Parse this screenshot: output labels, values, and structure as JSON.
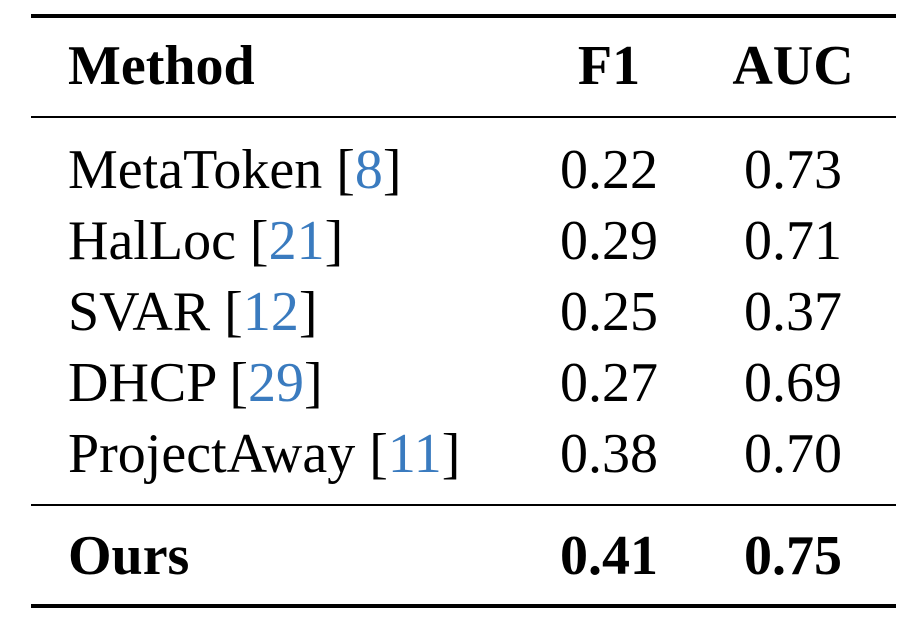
{
  "table": {
    "headers": {
      "method": "Method",
      "f1": "F1",
      "auc": "AUC"
    },
    "rows": [
      {
        "method": "MetaToken",
        "ref": "8",
        "f1": "0.22",
        "auc": "0.73"
      },
      {
        "method": "HalLoc",
        "ref": "21",
        "f1": "0.29",
        "auc": "0.71"
      },
      {
        "method": "SVAR",
        "ref": "12",
        "f1": "0.25",
        "auc": "0.37"
      },
      {
        "method": "DHCP",
        "ref": "29",
        "f1": "0.27",
        "auc": "0.69"
      },
      {
        "method": "ProjectAway",
        "ref": "11",
        "f1": "0.38",
        "auc": "0.70"
      }
    ],
    "ours": {
      "method": "Ours",
      "f1": "0.41",
      "auc": "0.75"
    }
  },
  "colors": {
    "citation_link": "#3a7bbf",
    "text": "#000000"
  }
}
